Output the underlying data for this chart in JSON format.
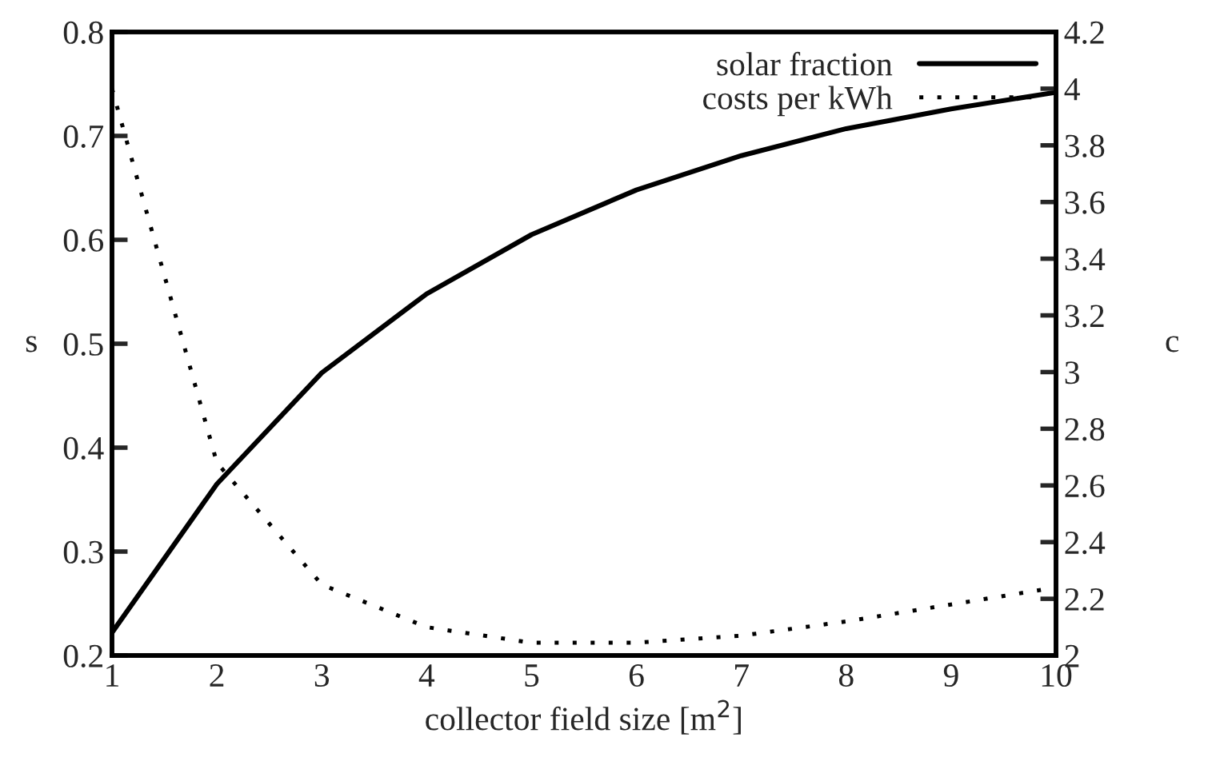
{
  "chart_data": {
    "type": "line",
    "xlabel": "collector field size [m$^{2}$]",
    "ylabel": "s",
    "y2label": "c",
    "x": [
      1,
      2,
      3,
      4,
      5,
      6,
      7,
      8,
      9,
      10
    ],
    "series": [
      {
        "name": "solar fraction",
        "color": "#000000",
        "line_style": "solid",
        "values": [
          0.222,
          0.365,
          0.472,
          0.548,
          0.605,
          0.648,
          0.681,
          0.707,
          0.726,
          0.742
        ]
      },
      {
        "name": "costs per kWh",
        "color": "#000000",
        "line_style": "dotted",
        "axis": "y2",
        "values": [
          4.0,
          2.68,
          2.25,
          2.1,
          2.045,
          2.045,
          2.07,
          2.12,
          2.18,
          2.24
        ]
      }
    ],
    "xlim": [
      1,
      10
    ],
    "xticks": [
      1,
      2,
      3,
      4,
      5,
      6,
      7,
      8,
      9,
      10
    ],
    "ylim": [
      0.2,
      0.8
    ],
    "yticks": [
      0.2,
      0.3,
      0.4,
      0.5,
      0.6,
      0.7,
      0.8
    ],
    "y2lim": [
      2,
      4.2
    ],
    "y2ticks": [
      2,
      2.2,
      2.4,
      2.6,
      2.8,
      3,
      3.2,
      3.4,
      3.6,
      3.8,
      4,
      4.2
    ],
    "legend": "top right",
    "grid": false,
    "marker": "none"
  }
}
